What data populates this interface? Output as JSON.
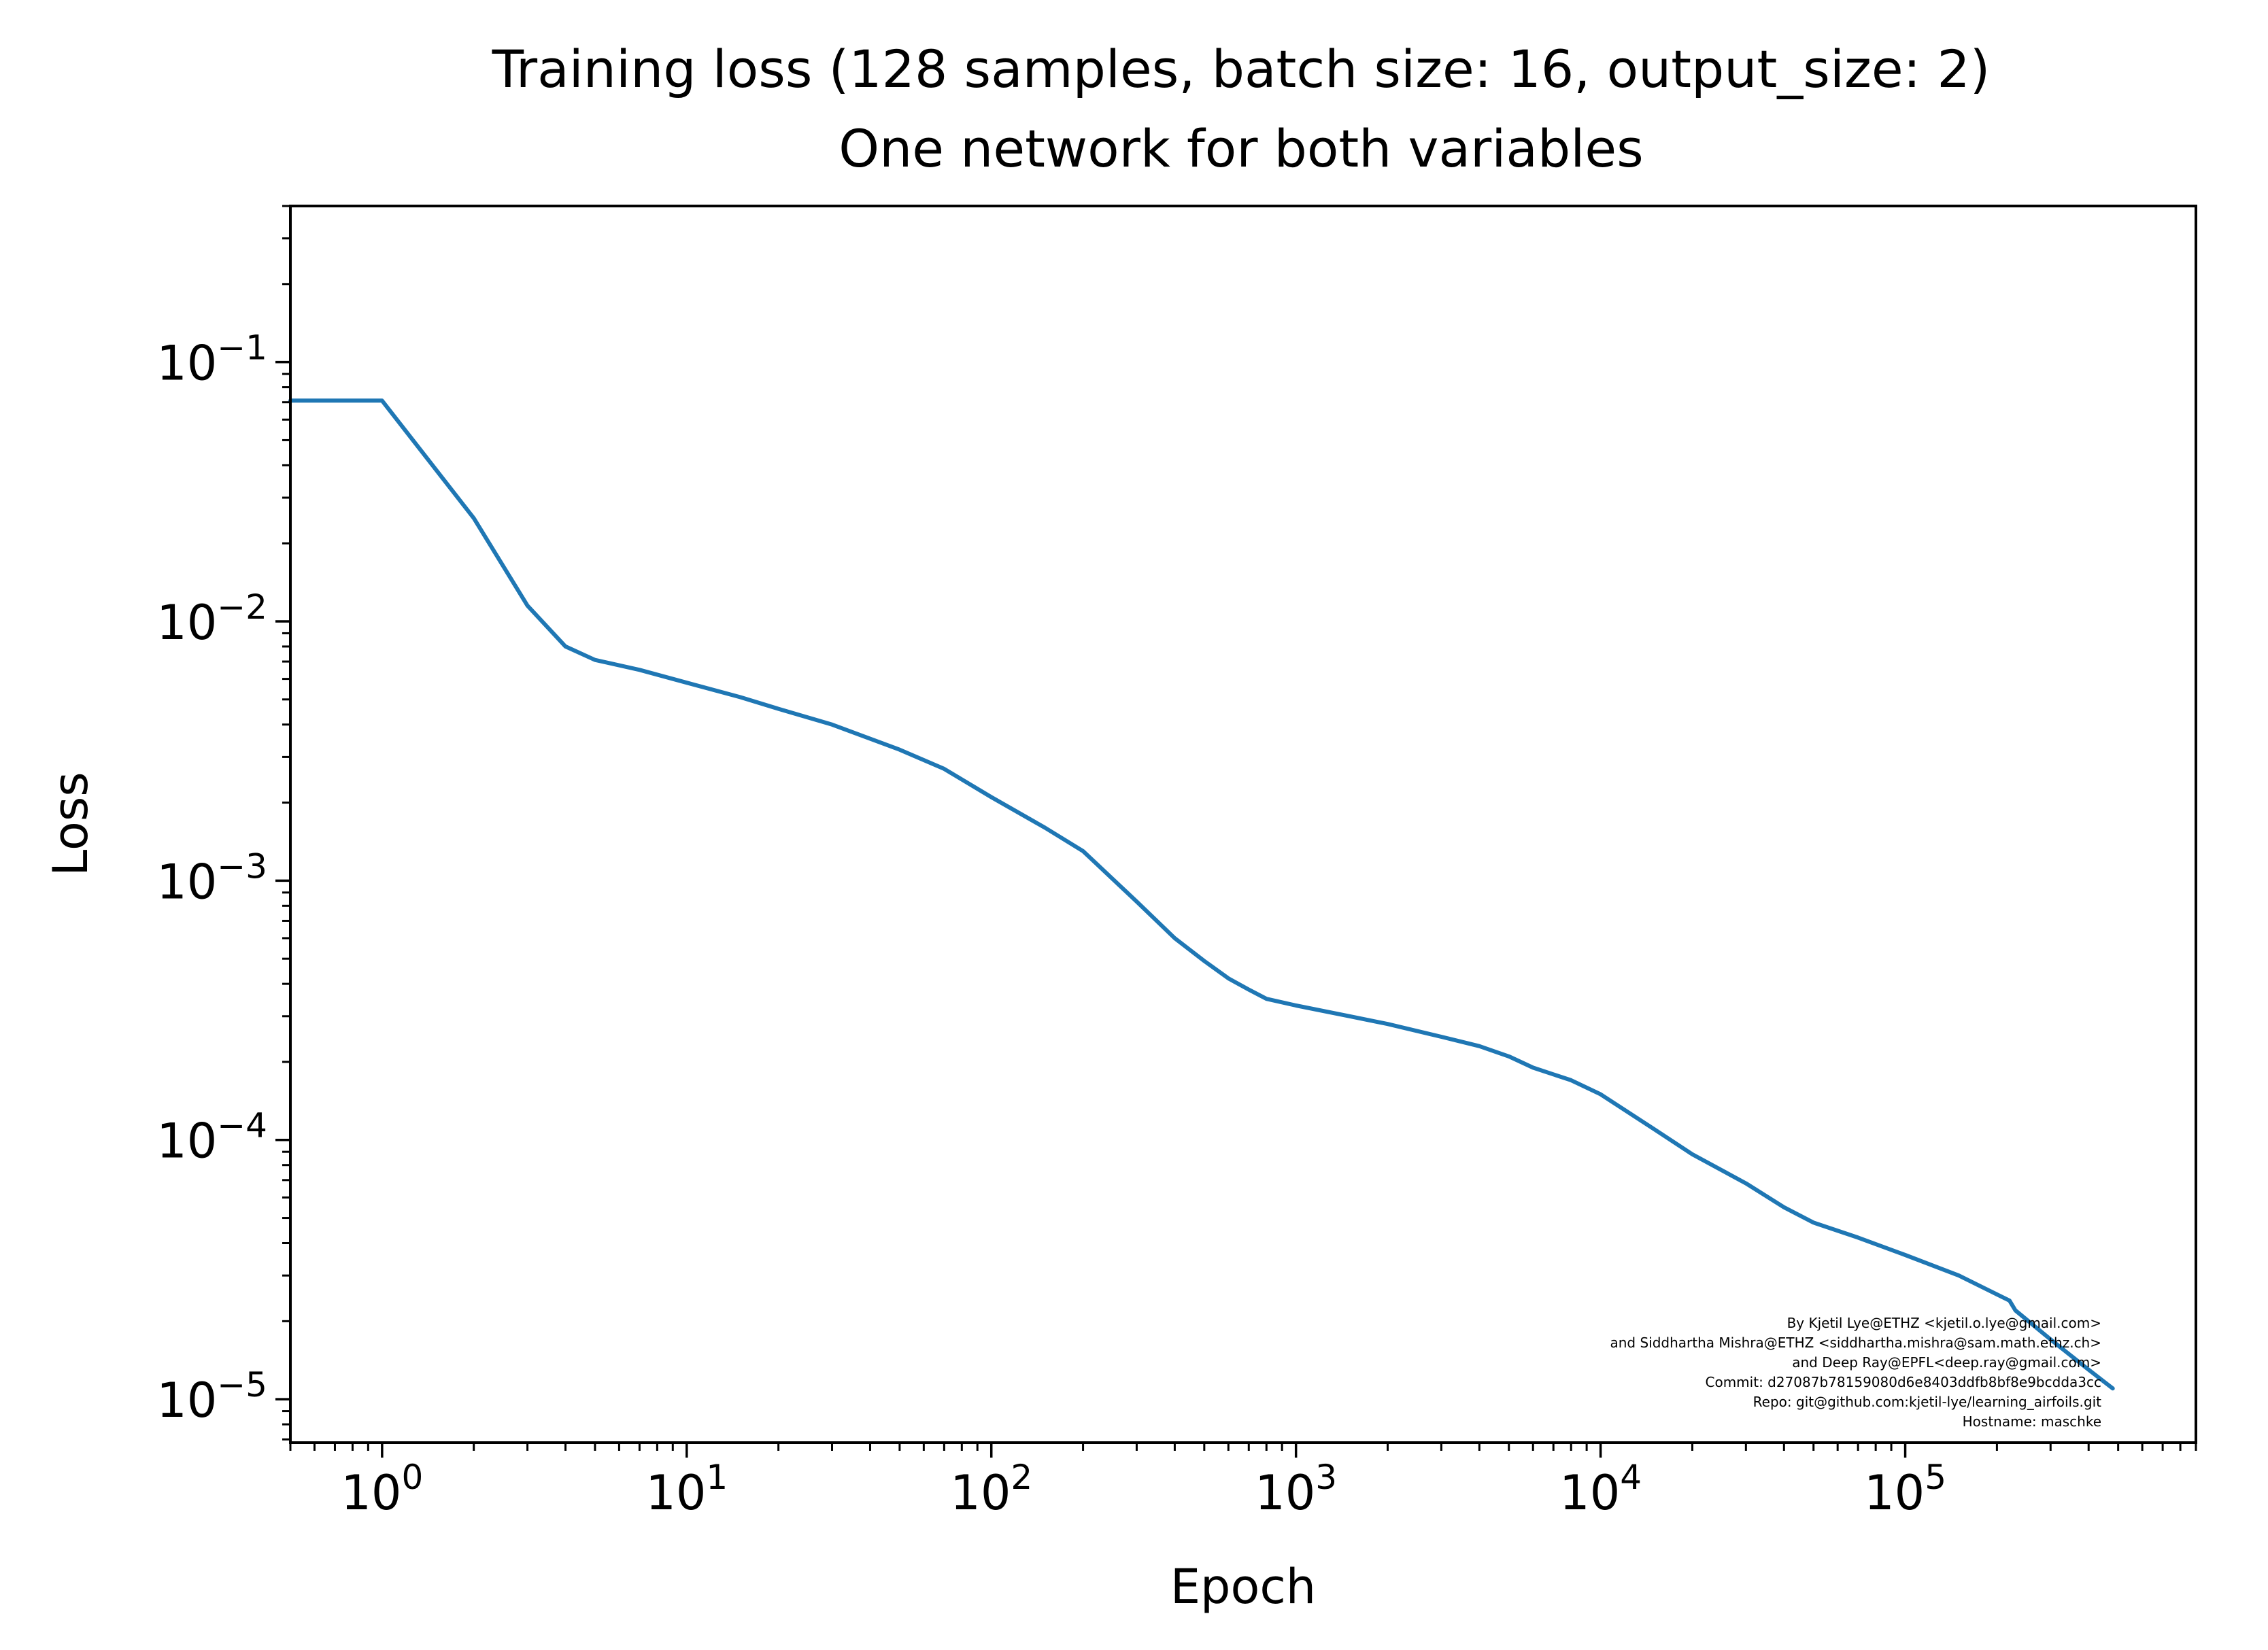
{
  "chart_data": {
    "type": "line",
    "title": "Training loss (128 samples, batch size: 16, output_size: 2)",
    "subtitle": "One network for both variables",
    "xlabel": "Epoch",
    "ylabel": "Loss",
    "xscale": "log",
    "yscale": "log",
    "xlim": [
      0.5,
      900000
    ],
    "ylim": [
      6.8e-06,
      0.4
    ],
    "grid": false,
    "x_ticks": [
      {
        "value": 1,
        "base": "10",
        "exp": "0"
      },
      {
        "value": 10,
        "base": "10",
        "exp": "1"
      },
      {
        "value": 100,
        "base": "10",
        "exp": "2"
      },
      {
        "value": 1000,
        "base": "10",
        "exp": "3"
      },
      {
        "value": 10000,
        "base": "10",
        "exp": "4"
      },
      {
        "value": 100000,
        "base": "10",
        "exp": "5"
      }
    ],
    "y_ticks": [
      {
        "value": 0.1,
        "base": "10",
        "exp": "−1"
      },
      {
        "value": 0.01,
        "base": "10",
        "exp": "−2"
      },
      {
        "value": 0.001,
        "base": "10",
        "exp": "−3"
      },
      {
        "value": 0.0001,
        "base": "10",
        "exp": "−4"
      },
      {
        "value": 1e-05,
        "base": "10",
        "exp": "−5"
      }
    ],
    "series": [
      {
        "color": "#1f77b4",
        "points": [
          [
            0.5,
            0.071
          ],
          [
            1,
            0.071
          ],
          [
            2,
            0.025
          ],
          [
            3,
            0.0115
          ],
          [
            4,
            0.008
          ],
          [
            5,
            0.0071
          ],
          [
            7,
            0.0065
          ],
          [
            10,
            0.0058
          ],
          [
            15,
            0.0051
          ],
          [
            20,
            0.0046
          ],
          [
            30,
            0.004
          ],
          [
            50,
            0.0032
          ],
          [
            70,
            0.0027
          ],
          [
            100,
            0.0021
          ],
          [
            150,
            0.0016
          ],
          [
            200,
            0.0013
          ],
          [
            300,
            0.00083
          ],
          [
            400,
            0.0006
          ],
          [
            500,
            0.00049
          ],
          [
            600,
            0.00042
          ],
          [
            700,
            0.00038
          ],
          [
            800,
            0.00035
          ],
          [
            1000,
            0.00033
          ],
          [
            1500,
            0.0003
          ],
          [
            2000,
            0.00028
          ],
          [
            3000,
            0.00025
          ],
          [
            4000,
            0.00023
          ],
          [
            5000,
            0.00021
          ],
          [
            6000,
            0.00019
          ],
          [
            8000,
            0.00017
          ],
          [
            10000,
            0.00015
          ],
          [
            15000,
            0.00011
          ],
          [
            20000,
            8.8e-05
          ],
          [
            30000,
            6.8e-05
          ],
          [
            40000,
            5.5e-05
          ],
          [
            50000,
            4.8e-05
          ],
          [
            70000,
            4.2e-05
          ],
          [
            100000,
            3.6e-05
          ],
          [
            150000,
            3e-05
          ],
          [
            220000,
            2.4e-05
          ],
          [
            230000,
            2.2e-05
          ],
          [
            300000,
            1.7e-05
          ],
          [
            400000,
            1.3e-05
          ],
          [
            480000,
            1.1e-05
          ]
        ]
      }
    ]
  },
  "watermark": {
    "lines": [
      "By Kjetil Lye@ETHZ <kjetil.o.lye@gmail.com>",
      "and Siddhartha Mishra@ETHZ <siddhartha.mishra@sam.math.ethz.ch>",
      "and Deep Ray@EPFL<deep.ray@gmail.com>",
      "Commit: d27087b78159080d6e8403ddfb8bf8e9bcdda3cc",
      "Repo: git@github.com:kjetil-lye/learning_airfoils.git",
      "Hostname: maschke"
    ]
  }
}
